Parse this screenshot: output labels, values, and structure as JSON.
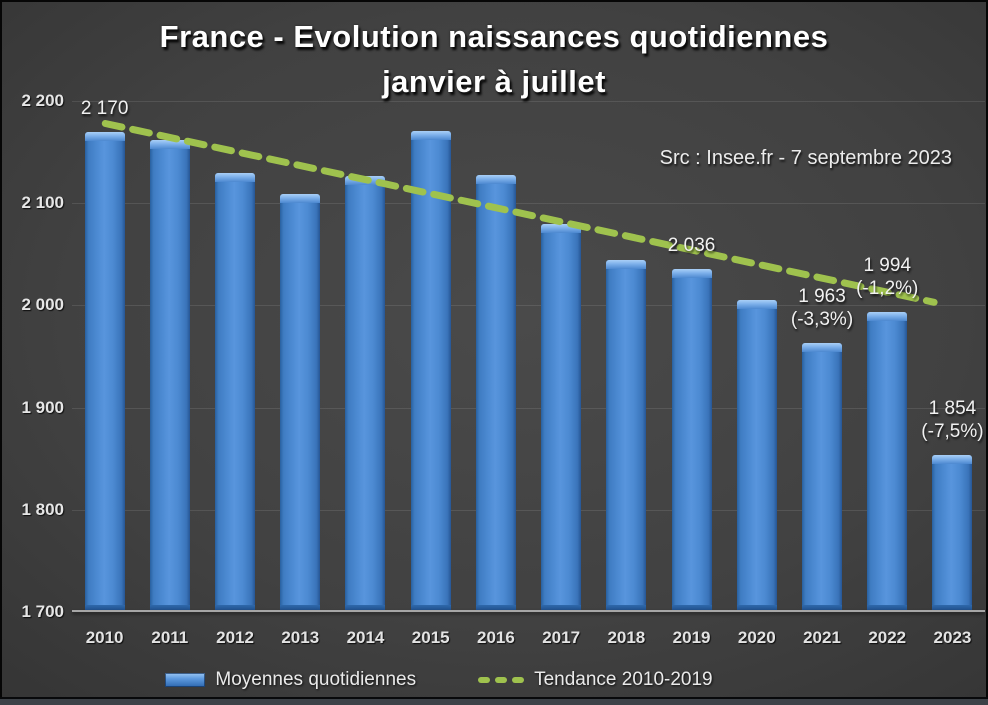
{
  "title": {
    "line1": "France - Evolution naissances quotidiennes",
    "line2": "janvier à juillet"
  },
  "source_note": "Src : Insee.fr - 7 septembre 2023",
  "legend": {
    "bars_label": "Moyennes quotidiennes",
    "trend_label": "Tendance 2010-2019"
  },
  "chart_data": {
    "type": "bar",
    "title": "France - Evolution naissances quotidiennes janvier à juillet",
    "categories": [
      "2010",
      "2011",
      "2012",
      "2013",
      "2014",
      "2015",
      "2016",
      "2017",
      "2018",
      "2019",
      "2020",
      "2021",
      "2022",
      "2023"
    ],
    "series": [
      {
        "name": "Moyennes quotidiennes",
        "values": [
          2170,
          2162,
          2130,
          2109,
          2127,
          2171,
          2128,
          2080,
          2044,
          2036,
          2005,
          1963,
          1994,
          1854
        ]
      }
    ],
    "data_labels": {
      "2010": [
        "2 170"
      ],
      "2019": [
        "2 036"
      ],
      "2021": [
        "1 963",
        "(-3,3%)"
      ],
      "2022": [
        "1 994",
        "(-1,2%)"
      ],
      "2023": [
        "1 854",
        "(-7,5%)"
      ]
    },
    "ylim": [
      1700,
      2200
    ],
    "ytick_step": 100,
    "yticks": [
      "2 200",
      "2 100",
      "2 000",
      "1 900",
      "1 800",
      "1 700"
    ],
    "trend": {
      "name": "Tendance 2010-2019",
      "style": "dashed",
      "from": {
        "band": 0.51,
        "value": 2178
      },
      "to": {
        "band": 13.22,
        "value": 2003
      }
    },
    "grid": true,
    "legend_position": "bottom"
  },
  "colors": {
    "bar_main": "#4c8ad2",
    "bar_edge": "#28609f",
    "bar_top_highlight": "#a9cff6",
    "trend_green": "#9fc24e",
    "axis_text": "#e6e6e6",
    "axis_line": "#a6a6a6",
    "gridline": "#4f4f4f",
    "background_center": "#4a4a4a",
    "background_edge": "#212121",
    "title_text": "#ffffff"
  }
}
